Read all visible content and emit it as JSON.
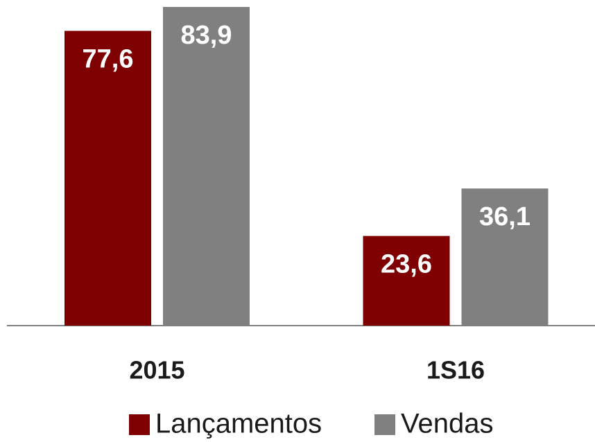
{
  "chart_data": {
    "type": "bar",
    "categories": [
      "2015",
      "1S16"
    ],
    "series": [
      {
        "name": "Lançamentos",
        "color": "#7f0000",
        "values": [
          77.6,
          23.6
        ],
        "value_labels": [
          "77,6",
          "23,6"
        ]
      },
      {
        "name": "Vendas",
        "color": "#808080",
        "values": [
          83.9,
          36.1
        ],
        "value_labels": [
          "83,9",
          "36,1"
        ]
      }
    ],
    "legend": "bottom"
  }
}
